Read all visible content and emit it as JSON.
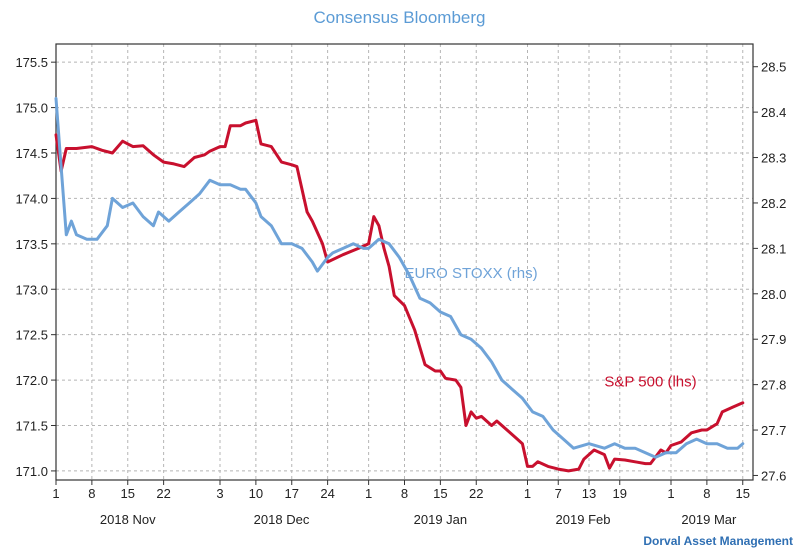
{
  "chart_data": {
    "type": "line",
    "title": "Consensus Bloomberg",
    "credit": "Dorval Asset Management",
    "x_day_ticks": [
      "1",
      "8",
      "15",
      "22",
      "3",
      "10",
      "17",
      "24",
      "1",
      "8",
      "15",
      "22",
      "1",
      "7",
      "13",
      "19",
      "1",
      "8",
      "15"
    ],
    "month_labels": [
      "2018 Nov",
      "2018 Dec",
      "2019 Jan",
      "2019 Feb",
      "2019 Mar"
    ],
    "left_axis": {
      "ticks": [
        "171.0",
        "171.5",
        "172.0",
        "172.5",
        "173.0",
        "173.5",
        "174.0",
        "174.5",
        "175.0",
        "175.5"
      ],
      "ylim": [
        170.9,
        175.7
      ]
    },
    "right_axis": {
      "ticks": [
        "27.6",
        "27.7",
        "27.8",
        "27.9",
        "28.0",
        "28.1",
        "28.2",
        "28.3",
        "28.4",
        "28.5"
      ],
      "ylim": [
        27.59,
        28.55
      ]
    },
    "series": [
      {
        "name": "S&P 500 (lhs)",
        "axis": "left",
        "color": "#c8102e",
        "points": [
          [
            "2018-11-01",
            174.7
          ],
          [
            "2018-11-02",
            174.3
          ],
          [
            "2018-11-03",
            174.55
          ],
          [
            "2018-11-05",
            174.55
          ],
          [
            "2018-11-08",
            174.57
          ],
          [
            "2018-11-10",
            174.53
          ],
          [
            "2018-11-12",
            174.5
          ],
          [
            "2018-11-14",
            174.63
          ],
          [
            "2018-11-16",
            174.57
          ],
          [
            "2018-11-18",
            174.58
          ],
          [
            "2018-11-20",
            174.48
          ],
          [
            "2018-11-22",
            174.4
          ],
          [
            "2018-11-24",
            174.38
          ],
          [
            "2018-11-26",
            174.35
          ],
          [
            "2018-11-28",
            174.45
          ],
          [
            "2018-11-30",
            174.48
          ],
          [
            "2018-12-01",
            174.52
          ],
          [
            "2018-12-03",
            174.57
          ],
          [
            "2018-12-04",
            174.57
          ],
          [
            "2018-12-05",
            174.8
          ],
          [
            "2018-12-07",
            174.8
          ],
          [
            "2018-12-08",
            174.83
          ],
          [
            "2018-12-10",
            174.86
          ],
          [
            "2018-12-11",
            174.6
          ],
          [
            "2018-12-13",
            174.57
          ],
          [
            "2018-12-15",
            174.4
          ],
          [
            "2018-12-17",
            174.37
          ],
          [
            "2018-12-18",
            174.35
          ],
          [
            "2018-12-20",
            173.85
          ],
          [
            "2018-12-21",
            173.75
          ],
          [
            "2018-12-23",
            173.5
          ],
          [
            "2018-12-24",
            173.3
          ],
          [
            "2018-12-27",
            173.38
          ],
          [
            "2018-12-30",
            173.45
          ],
          [
            "2019-01-01",
            173.5
          ],
          [
            "2019-01-02",
            173.8
          ],
          [
            "2019-01-03",
            173.7
          ],
          [
            "2019-01-04",
            173.45
          ],
          [
            "2019-01-05",
            173.25
          ],
          [
            "2019-01-06",
            172.93
          ],
          [
            "2019-01-08",
            172.82
          ],
          [
            "2019-01-10",
            172.55
          ],
          [
            "2019-01-12",
            172.17
          ],
          [
            "2019-01-14",
            172.1
          ],
          [
            "2019-01-15",
            172.1
          ],
          [
            "2019-01-16",
            172.02
          ],
          [
            "2019-01-18",
            172.0
          ],
          [
            "2019-01-19",
            171.92
          ],
          [
            "2019-01-20",
            171.5
          ],
          [
            "2019-01-21",
            171.65
          ],
          [
            "2019-01-22",
            171.58
          ],
          [
            "2019-01-23",
            171.6
          ],
          [
            "2019-01-25",
            171.5
          ],
          [
            "2019-01-26",
            171.55
          ],
          [
            "2019-01-28",
            171.45
          ],
          [
            "2019-01-30",
            171.35
          ],
          [
            "2019-01-31",
            171.3
          ],
          [
            "2019-02-01",
            171.05
          ],
          [
            "2019-02-02",
            171.05
          ],
          [
            "2019-02-03",
            171.1
          ],
          [
            "2019-02-05",
            171.05
          ],
          [
            "2019-02-07",
            171.02
          ],
          [
            "2019-02-09",
            171.0
          ],
          [
            "2019-02-11",
            171.02
          ],
          [
            "2019-02-12",
            171.13
          ],
          [
            "2019-02-14",
            171.23
          ],
          [
            "2019-02-16",
            171.18
          ],
          [
            "2019-02-17",
            171.03
          ],
          [
            "2019-02-18",
            171.13
          ],
          [
            "2019-02-20",
            171.12
          ],
          [
            "2019-02-22",
            171.1
          ],
          [
            "2019-02-24",
            171.08
          ],
          [
            "2019-02-25",
            171.08
          ],
          [
            "2019-02-27",
            171.23
          ],
          [
            "2019-02-28",
            171.2
          ],
          [
            "2019-03-01",
            171.28
          ],
          [
            "2019-03-03",
            171.32
          ],
          [
            "2019-03-05",
            171.42
          ],
          [
            "2019-03-07",
            171.45
          ],
          [
            "2019-03-08",
            171.45
          ],
          [
            "2019-03-10",
            171.52
          ],
          [
            "2019-03-11",
            171.65
          ],
          [
            "2019-03-13",
            171.7
          ],
          [
            "2019-03-15",
            171.75
          ]
        ]
      },
      {
        "name": "EURO STOXX (rhs)",
        "axis": "right",
        "color": "#6fa3d8",
        "points": [
          [
            "2018-11-01",
            28.43
          ],
          [
            "2018-11-02",
            28.28
          ],
          [
            "2018-11-03",
            28.13
          ],
          [
            "2018-11-04",
            28.16
          ],
          [
            "2018-11-05",
            28.13
          ],
          [
            "2018-11-07",
            28.12
          ],
          [
            "2018-11-09",
            28.12
          ],
          [
            "2018-11-11",
            28.15
          ],
          [
            "2018-11-12",
            28.21
          ],
          [
            "2018-11-14",
            28.19
          ],
          [
            "2018-11-16",
            28.2
          ],
          [
            "2018-11-18",
            28.17
          ],
          [
            "2018-11-20",
            28.15
          ],
          [
            "2018-11-21",
            28.18
          ],
          [
            "2018-11-23",
            28.16
          ],
          [
            "2018-11-25",
            28.18
          ],
          [
            "2018-11-27",
            28.2
          ],
          [
            "2018-11-29",
            28.22
          ],
          [
            "2018-12-01",
            28.25
          ],
          [
            "2018-12-03",
            28.24
          ],
          [
            "2018-12-05",
            28.24
          ],
          [
            "2018-12-07",
            28.23
          ],
          [
            "2018-12-08",
            28.23
          ],
          [
            "2018-12-10",
            28.2
          ],
          [
            "2018-12-11",
            28.17
          ],
          [
            "2018-12-13",
            28.15
          ],
          [
            "2018-12-15",
            28.11
          ],
          [
            "2018-12-17",
            28.11
          ],
          [
            "2018-12-19",
            28.1
          ],
          [
            "2018-12-21",
            28.07
          ],
          [
            "2018-12-22",
            28.05
          ],
          [
            "2018-12-24",
            28.08
          ],
          [
            "2018-12-25",
            28.09
          ],
          [
            "2018-12-27",
            28.1
          ],
          [
            "2018-12-29",
            28.11
          ],
          [
            "2018-12-31",
            28.1
          ],
          [
            "2019-01-01",
            28.1
          ],
          [
            "2019-01-03",
            28.12
          ],
          [
            "2019-01-05",
            28.11
          ],
          [
            "2019-01-07",
            28.08
          ],
          [
            "2019-01-09",
            28.04
          ],
          [
            "2019-01-11",
            27.99
          ],
          [
            "2019-01-13",
            27.98
          ],
          [
            "2019-01-15",
            27.96
          ],
          [
            "2019-01-17",
            27.95
          ],
          [
            "2019-01-19",
            27.91
          ],
          [
            "2019-01-21",
            27.9
          ],
          [
            "2019-01-23",
            27.88
          ],
          [
            "2019-01-25",
            27.85
          ],
          [
            "2019-01-27",
            27.81
          ],
          [
            "2019-01-29",
            27.79
          ],
          [
            "2019-01-31",
            27.77
          ],
          [
            "2019-02-02",
            27.74
          ],
          [
            "2019-02-04",
            27.73
          ],
          [
            "2019-02-06",
            27.7
          ],
          [
            "2019-02-08",
            27.68
          ],
          [
            "2019-02-10",
            27.66
          ],
          [
            "2019-02-13",
            27.67
          ],
          [
            "2019-02-16",
            27.66
          ],
          [
            "2019-02-18",
            27.67
          ],
          [
            "2019-02-20",
            27.66
          ],
          [
            "2019-02-22",
            27.66
          ],
          [
            "2019-02-24",
            27.65
          ],
          [
            "2019-02-26",
            27.64
          ],
          [
            "2019-02-28",
            27.65
          ],
          [
            "2019-03-02",
            27.65
          ],
          [
            "2019-03-04",
            27.67
          ],
          [
            "2019-03-06",
            27.68
          ],
          [
            "2019-03-08",
            27.67
          ],
          [
            "2019-03-10",
            27.67
          ],
          [
            "2019-03-12",
            27.66
          ],
          [
            "2019-03-14",
            27.66
          ],
          [
            "2019-03-15",
            27.67
          ]
        ]
      }
    ],
    "grid": true,
    "series_labels_placement": "inline"
  }
}
